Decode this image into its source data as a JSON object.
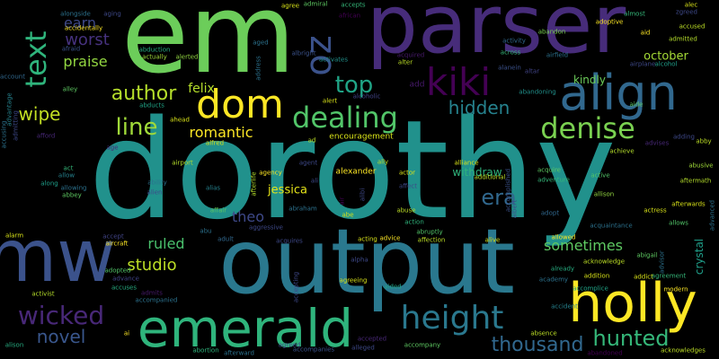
{
  "background": "#000000",
  "words": [
    {
      "text": "dorothy",
      "color": "#21918c",
      "rotated": false
    },
    {
      "text": "em",
      "color": "#6ccd5a",
      "rotated": false
    },
    {
      "text": "parser",
      "color": "#472c7a",
      "rotated": false
    },
    {
      "text": "output",
      "color": "#2a788e",
      "rotated": false
    },
    {
      "text": "emerald",
      "color": "#2fb47c",
      "rotated": false
    },
    {
      "text": "mw",
      "color": "#3b528b",
      "rotated": false
    },
    {
      "text": "holly",
      "color": "#fde725",
      "rotated": false
    },
    {
      "text": "align",
      "color": "#31688e",
      "rotated": false
    },
    {
      "text": "kiki",
      "color": "#440154",
      "rotated": false
    },
    {
      "text": "dom",
      "color": "#fde725",
      "rotated": false
    },
    {
      "text": "oz",
      "color": "#3b528b",
      "rotated": true
    },
    {
      "text": "text",
      "color": "#2fb47c",
      "rotated": true
    },
    {
      "text": "dealing",
      "color": "#52c569",
      "rotated": false
    },
    {
      "text": "height",
      "color": "#2a788e",
      "rotated": false
    },
    {
      "text": "denise",
      "color": "#7ad151",
      "rotated": false
    },
    {
      "text": "wicked",
      "color": "#482878",
      "rotated": false
    },
    {
      "text": "hunted",
      "color": "#35b779",
      "rotated": false
    },
    {
      "text": "crystal",
      "color": "#1f9e89",
      "rotated": true
    },
    {
      "text": "thousand",
      "color": "#31688e",
      "rotated": false
    },
    {
      "text": "author",
      "color": "#b5de2b",
      "rotated": false
    },
    {
      "text": "line",
      "color": "#a0da39",
      "rotated": false
    },
    {
      "text": "top",
      "color": "#20a486",
      "rotated": false
    },
    {
      "text": "era",
      "color": "#31688e",
      "rotated": false
    },
    {
      "text": "hidden",
      "color": "#26828e",
      "rotated": false
    },
    {
      "text": "worst",
      "color": "#46327e",
      "rotated": false
    },
    {
      "text": "praise",
      "color": "#93d741",
      "rotated": false
    },
    {
      "text": "wipe",
      "color": "#c2df23",
      "rotated": false
    },
    {
      "text": "earn",
      "color": "#3e4989",
      "rotated": false
    },
    {
      "text": "novel",
      "color": "#39568c",
      "rotated": false
    },
    {
      "text": "studio",
      "color": "#bddf26",
      "rotated": false
    },
    {
      "text": "ruled",
      "color": "#4ac16d",
      "rotated": false
    },
    {
      "text": "sometimes",
      "color": "#5ec962",
      "rotated": false
    },
    {
      "text": "felix",
      "color": "#b5de2b",
      "rotated": false
    },
    {
      "text": "romantic",
      "color": "#fde725",
      "rotated": false
    },
    {
      "text": "theo",
      "color": "#3e4989",
      "rotated": false
    },
    {
      "text": "kindly",
      "color": "#6ccd5a",
      "rotated": false
    },
    {
      "text": "october",
      "color": "#a5db36",
      "rotated": false
    },
    {
      "text": "jessica",
      "color": "#e5e419",
      "rotated": false
    },
    {
      "text": "encouragement",
      "color": "#d8e219",
      "rotated": false
    },
    {
      "text": "alexander",
      "color": "#fde725",
      "rotated": false
    },
    {
      "text": "withdraw",
      "color": "#2fb47c",
      "rotated": false
    },
    {
      "text": "add",
      "color": "#481a6c",
      "rotated": false
    },
    {
      "text": "adoptive",
      "color": "#fde725",
      "rotated": false
    },
    {
      "text": "admiral",
      "color": "#5ec962",
      "rotated": false
    },
    {
      "text": "accepts",
      "color": "#35b779",
      "rotated": false
    },
    {
      "text": "agree",
      "color": "#d8e219",
      "rotated": false
    },
    {
      "text": "aging",
      "color": "#3e4989",
      "rotated": false
    },
    {
      "text": "alongside",
      "color": "#2c728e",
      "rotated": false
    },
    {
      "text": "accidentally",
      "color": "#fde725",
      "rotated": false
    },
    {
      "text": "afraid",
      "color": "#3b528b",
      "rotated": false
    },
    {
      "text": "abduction",
      "color": "#27ad81",
      "rotated": false
    },
    {
      "text": "actually",
      "color": "#a0da39",
      "rotated": false
    },
    {
      "text": "alerted",
      "color": "#93d741",
      "rotated": false
    },
    {
      "text": "albright",
      "color": "#3b528b",
      "rotated": false
    },
    {
      "text": "activates",
      "color": "#21918c",
      "rotated": false
    },
    {
      "text": "acquired",
      "color": "#481a6c",
      "rotated": false
    },
    {
      "text": "alter",
      "color": "#bddf26",
      "rotated": false
    },
    {
      "text": "alcoholic",
      "color": "#414487",
      "rotated": false
    },
    {
      "text": "alert",
      "color": "#d8e219",
      "rotated": false
    },
    {
      "text": "abandoning",
      "color": "#21918c",
      "rotated": false
    },
    {
      "text": "airfield",
      "color": "#2c728e",
      "rotated": false
    },
    {
      "text": "abandon",
      "color": "#7ad151",
      "rotated": false
    },
    {
      "text": "activity",
      "color": "#31688e",
      "rotated": false
    },
    {
      "text": "aid",
      "color": "#fde725",
      "rotated": false
    },
    {
      "text": "almost",
      "color": "#35b779",
      "rotated": false
    },
    {
      "text": "alec",
      "color": "#d8e219",
      "rotated": false
    },
    {
      "text": "accused",
      "color": "#bddf26",
      "rotated": false
    },
    {
      "text": "admitted",
      "color": "#b5de2b",
      "rotated": false
    },
    {
      "text": "alcohol",
      "color": "#1f9e89",
      "rotated": false
    },
    {
      "text": "airplane",
      "color": "#3e4989",
      "rotated": false
    },
    {
      "text": "aide",
      "color": "#5ec962",
      "rotated": false
    },
    {
      "text": "acknowledges",
      "color": "#bddf26",
      "rotated": false
    },
    {
      "text": "absence",
      "color": "#bddf26",
      "rotated": false
    },
    {
      "text": "abandoned",
      "color": "#440154",
      "rotated": false
    },
    {
      "text": "accompany",
      "color": "#5ec962",
      "rotated": false
    },
    {
      "text": "accepted",
      "color": "#482878",
      "rotated": false
    },
    {
      "text": "accompanies",
      "color": "#3b528b",
      "rotated": false
    },
    {
      "text": "abortion",
      "color": "#2fb47c",
      "rotated": false
    },
    {
      "text": "afterward",
      "color": "#2c728e",
      "rotated": false
    },
    {
      "text": "alison",
      "color": "#27ad81",
      "rotated": false
    },
    {
      "text": "activist",
      "color": "#b5de2b",
      "rotated": false
    },
    {
      "text": "aircraft",
      "color": "#fde725",
      "rotated": false
    },
    {
      "text": "adopted",
      "color": "#52c569",
      "rotated": false
    },
    {
      "text": "admits",
      "color": "#481a6c",
      "rotated": false
    },
    {
      "text": "accompanied",
      "color": "#2c728e",
      "rotated": false
    },
    {
      "text": "agreeing",
      "color": "#d8e219",
      "rotated": false
    },
    {
      "text": "aided",
      "color": "#20a486",
      "rotated": false
    },
    {
      "text": "alpha",
      "color": "#3e4989",
      "rotated": false
    },
    {
      "text": "advice",
      "color": "#fde725",
      "rotated": false
    },
    {
      "text": "affection",
      "color": "#bddf26",
      "rotated": false
    },
    {
      "text": "alive",
      "color": "#d8e219",
      "rotated": false
    },
    {
      "text": "abruptly",
      "color": "#52c569",
      "rotated": false
    },
    {
      "text": "alliance",
      "color": "#d8e219",
      "rotated": false
    },
    {
      "text": "acquire",
      "color": "#5ec962",
      "rotated": false
    },
    {
      "text": "active",
      "color": "#52c569",
      "rotated": false
    },
    {
      "text": "allison",
      "color": "#93d741",
      "rotated": false
    },
    {
      "text": "aftermath",
      "color": "#b5de2b",
      "rotated": false
    },
    {
      "text": "afterwards",
      "color": "#d8e219",
      "rotated": false
    },
    {
      "text": "acquaintance",
      "color": "#2c728e",
      "rotated": false
    },
    {
      "text": "abigail",
      "color": "#5ec962",
      "rotated": false
    },
    {
      "text": "allowed",
      "color": "#fde725",
      "rotated": false
    },
    {
      "text": "acknowledge",
      "color": "#bddf26",
      "rotated": false
    },
    {
      "text": "addition",
      "color": "#d8e219",
      "rotated": false
    },
    {
      "text": "agreement",
      "color": "#35b779",
      "rotated": false
    },
    {
      "text": "accomplice",
      "color": "#20a486",
      "rotated": false
    },
    {
      "text": "accident",
      "color": "#26828e",
      "rotated": false
    },
    {
      "text": "abuse",
      "color": "#bddf26",
      "rotated": false
    },
    {
      "text": "action",
      "color": "#2fb47c",
      "rotated": false
    },
    {
      "text": "adventure",
      "color": "#35b779",
      "rotated": false
    },
    {
      "text": "adopt",
      "color": "#31688e",
      "rotated": false
    },
    {
      "text": "achieve",
      "color": "#b5de2b",
      "rotated": false
    },
    {
      "text": "advises",
      "color": "#482878",
      "rotated": false
    },
    {
      "text": "abusive",
      "color": "#a0da39",
      "rotated": false
    },
    {
      "text": "abby",
      "color": "#bddf26",
      "rotated": false
    },
    {
      "text": "adding",
      "color": "#3e4989",
      "rotated": false
    },
    {
      "text": "agency",
      "color": "#fde725",
      "rotated": false
    },
    {
      "text": "ally",
      "color": "#bddf26",
      "rotated": false
    },
    {
      "text": "affair",
      "color": "#5ec962",
      "rotated": false
    },
    {
      "text": "abraham",
      "color": "#2c728e",
      "rotated": false
    },
    {
      "text": "alias",
      "color": "#26828e",
      "rotated": false
    },
    {
      "text": "airport",
      "color": "#b5de2b",
      "rotated": false
    },
    {
      "text": "alfred",
      "color": "#d8e219",
      "rotated": false
    },
    {
      "text": "agent",
      "color": "#3e4989",
      "rotated": false
    },
    {
      "text": "ad",
      "color": "#bddf26",
      "rotated": false
    },
    {
      "text": "ali",
      "color": "#3e4989",
      "rotated": false
    },
    {
      "text": "abe",
      "color": "#d8e219",
      "rotated": false
    },
    {
      "text": "act",
      "color": "#35b779",
      "rotated": false
    },
    {
      "text": "allow",
      "color": "#26828e",
      "rotated": false
    },
    {
      "text": "along",
      "color": "#1f9e89",
      "rotated": false
    },
    {
      "text": "allowing",
      "color": "#2c728e",
      "rotated": false
    },
    {
      "text": "abbey",
      "color": "#5ec962",
      "rotated": false
    },
    {
      "text": "alarm",
      "color": "#d8e219",
      "rotated": false
    },
    {
      "text": "accept",
      "color": "#414487",
      "rotated": false
    },
    {
      "text": "adult",
      "color": "#31688e",
      "rotated": false
    },
    {
      "text": "acquires",
      "color": "#3e4989",
      "rotated": false
    },
    {
      "text": "acting",
      "color": "#d8e219",
      "rotated": false
    },
    {
      "text": "age",
      "color": "#482878",
      "rotated": false
    },
    {
      "text": "account",
      "color": "#31688e",
      "rotated": false
    },
    {
      "text": "alley",
      "color": "#5ec962",
      "rotated": false
    },
    {
      "text": "afford",
      "color": "#482878",
      "rotated": false
    },
    {
      "text": "abducts",
      "color": "#20a486",
      "rotated": false
    },
    {
      "text": "ahead",
      "color": "#d8e219",
      "rotated": false
    },
    {
      "text": "aged",
      "color": "#2c728e",
      "rotated": false
    },
    {
      "text": "altar",
      "color": "#414487",
      "rotated": false
    },
    {
      "text": "alanein",
      "color": "#3b528b",
      "rotated": false
    },
    {
      "text": "across",
      "color": "#35b779",
      "rotated": false
    },
    {
      "text": "advance",
      "color": "#414487",
      "rotated": false
    },
    {
      "text": "addict",
      "color": "#d8e219",
      "rotated": false
    },
    {
      "text": "actress",
      "color": "#d8e219",
      "rotated": false
    },
    {
      "text": "allows",
      "color": "#52c569",
      "rotated": false
    },
    {
      "text": "modern",
      "color": "#fde725",
      "rotated": false
    },
    {
      "text": "already",
      "color": "#27ad81",
      "rotated": false
    },
    {
      "text": "academy",
      "color": "#2c728e",
      "rotated": false
    },
    {
      "text": "abu",
      "color": "#2c728e",
      "rotated": false
    },
    {
      "text": "ai",
      "color": "#fde725",
      "rotated": false
    },
    {
      "text": "alien",
      "color": "#3e4989",
      "rotated": false
    },
    {
      "text": "ability",
      "color": "#2c728e",
      "rotated": false
    },
    {
      "text": "aggressive",
      "color": "#3e4989",
      "rotated": false
    },
    {
      "text": "affect",
      "color": "#3e4989",
      "rotated": false
    },
    {
      "text": "actor",
      "color": "#d8e219",
      "rotated": false
    },
    {
      "text": "additional",
      "color": "#bddf26",
      "rotated": false
    },
    {
      "text": "accuses",
      "color": "#27ad81",
      "rotated": false
    },
    {
      "text": "accusing",
      "color": "#2c728e",
      "rotated": true
    },
    {
      "text": "advantage",
      "color": "#26828e",
      "rotated": true
    },
    {
      "text": "admitting",
      "color": "#3e4989",
      "rotated": true
    },
    {
      "text": "address",
      "color": "#2c728e",
      "rotated": true
    },
    {
      "text": "afterlife",
      "color": "#b5de2b",
      "rotated": true
    },
    {
      "text": "advanced",
      "color": "#2c728e",
      "rotated": true
    },
    {
      "text": "accepting",
      "color": "#3e4989",
      "rotated": true
    },
    {
      "text": "alibi",
      "color": "#3e4989",
      "rotated": true
    },
    {
      "text": "air",
      "color": "#440154",
      "rotated": true
    },
    {
      "text": "advisor",
      "color": "#2c728e",
      "rotated": true
    },
    {
      "text": "accomplished",
      "color": "#3b528b",
      "rotated": true
    },
    {
      "text": "albert",
      "color": "#3e4989",
      "rotated": true
    },
    {
      "text": "agreed",
      "color": "#3e4989",
      "rotated": false
    },
    {
      "text": "alleged",
      "color": "#3e4989",
      "rotated": false
    },
    {
      "text": "african",
      "color": "#440154",
      "rotated": false
    },
    {
      "text": "zgreed",
      "color": "#3e4989",
      "rotated": false
    }
  ]
}
